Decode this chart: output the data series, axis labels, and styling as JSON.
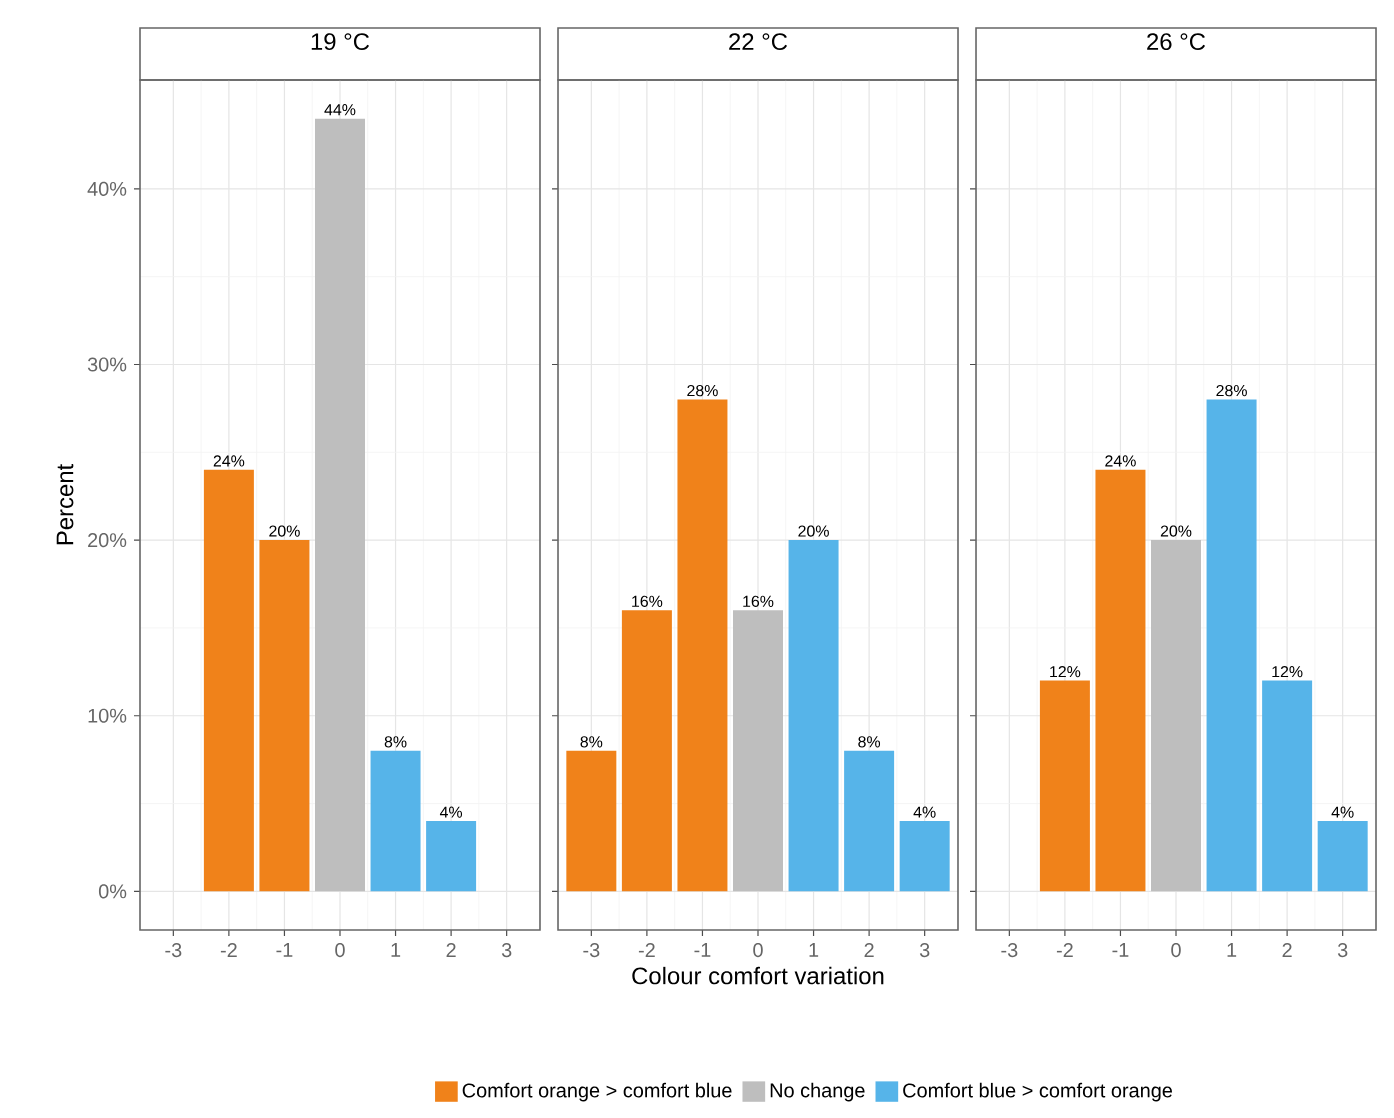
{
  "chart_data": [
    {
      "type": "bar",
      "title": "19 °C",
      "ylabel": "Percent",
      "xlim": [
        -3.6,
        3.6
      ],
      "xticks": [
        -3,
        -2,
        -1,
        0,
        1,
        2,
        3
      ],
      "ylim": [
        -2.2,
        46.2
      ],
      "yticks": [
        {
          "value": 0,
          "label": "0%"
        },
        {
          "value": 10,
          "label": "10%"
        },
        {
          "value": 20,
          "label": "20%"
        },
        {
          "value": 30,
          "label": "30%"
        },
        {
          "value": 40,
          "label": "40%"
        }
      ],
      "grid": true,
      "series": [
        {
          "color": "#f0821a",
          "x": [
            -2,
            -1
          ],
          "values": [
            24,
            20
          ],
          "value_labels": [
            "24%",
            "20%"
          ]
        },
        {
          "color": "#bebebe",
          "x": [
            0
          ],
          "values": [
            44
          ],
          "value_labels": [
            "44%"
          ]
        },
        {
          "color": "#56b4e9",
          "x": [
            1,
            2
          ],
          "values": [
            8,
            4
          ],
          "value_labels": [
            "8%",
            "4%"
          ]
        }
      ]
    },
    {
      "type": "bar",
      "title": "22 °C",
      "xlabel": "Colour comfort variation",
      "xlim": [
        -3.6,
        3.6
      ],
      "xticks": [
        -3,
        -2,
        -1,
        0,
        1,
        2,
        3
      ],
      "ylim": [
        -2.2,
        46.2
      ],
      "yticks": [
        0,
        10,
        20,
        30,
        40
      ],
      "grid": true,
      "tick_labels": "x",
      "legend": "bottom",
      "series": [
        {
          "name": "Comfort orange > comfort blue",
          "color": "#f0821a",
          "x": [
            -3,
            -2,
            -1
          ],
          "values": [
            8,
            16,
            28
          ],
          "value_labels": [
            "8%",
            "16%",
            "28%"
          ]
        },
        {
          "name": "No change",
          "color": "#bebebe",
          "x": [
            0
          ],
          "values": [
            16
          ],
          "value_labels": [
            "16%"
          ]
        },
        {
          "name": "Comfort blue > comfort orange",
          "color": "#56b4e9",
          "x": [
            1,
            2,
            3
          ],
          "values": [
            20,
            8,
            4
          ],
          "value_labels": [
            "20%",
            "8%",
            "4%"
          ]
        }
      ]
    },
    {
      "type": "bar",
      "title": "26 °C",
      "xlim": [
        -3.6,
        3.6
      ],
      "xticks": [
        -3,
        -2,
        -1,
        0,
        1,
        2,
        3
      ],
      "ylim": [
        -2.2,
        46.2
      ],
      "yticks": [
        0,
        10,
        20,
        30,
        40
      ],
      "grid": true,
      "tick_labels": "x",
      "series": [
        {
          "color": "#f0821a",
          "x": [
            -2,
            -1
          ],
          "values": [
            12,
            24
          ],
          "value_labels": [
            "12%",
            "24%"
          ]
        },
        {
          "color": "#bebebe",
          "x": [
            0
          ],
          "values": [
            20
          ],
          "value_labels": [
            "20%"
          ]
        },
        {
          "color": "#56b4e9",
          "x": [
            1,
            2,
            3
          ],
          "values": [
            28,
            12,
            4
          ],
          "value_labels": [
            "28%",
            "12%",
            "4%"
          ]
        }
      ]
    }
  ]
}
